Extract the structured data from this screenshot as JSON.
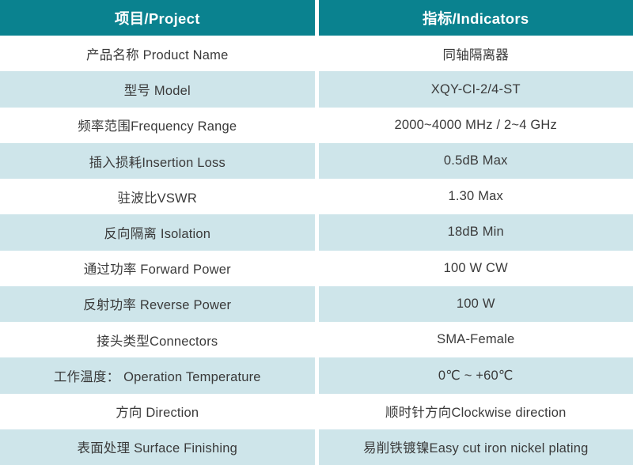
{
  "table": {
    "header": {
      "project_col": "项目/Project",
      "indicator_col": "指标/Indicators"
    },
    "rows": [
      {
        "project": "产品名称 Product Name",
        "indicator": "同轴隔离器"
      },
      {
        "project": "型号 Model",
        "indicator": "XQY-CI-2/4-ST"
      },
      {
        "project": "频率范围Frequency Range",
        "indicator": "2000~4000 MHz / 2~4 GHz"
      },
      {
        "project": "插入损耗Insertion Loss",
        "indicator": "0.5dB Max"
      },
      {
        "project": "驻波比VSWR",
        "indicator": "1.30 Max"
      },
      {
        "project": "反向隔离 Isolation",
        "indicator": "18dB Min"
      },
      {
        "project": "通过功率 Forward Power",
        "indicator": "100 W CW"
      },
      {
        "project": "反射功率 Reverse Power",
        "indicator": "100 W"
      },
      {
        "project": "接头类型Connectors",
        "indicator": "SMA-Female"
      },
      {
        "project": "工作温度： Operation Temperature",
        "indicator": "0℃ ~ +60℃"
      },
      {
        "project": "方向 Direction",
        "indicator": "顺时针方向Clockwise direction"
      },
      {
        "project": "表面处理 Surface Finishing",
        "indicator": "易削铁镀镍Easy cut iron nickel plating"
      }
    ]
  },
  "colors": {
    "header_bg": "#0a828f",
    "row_alt_bg": "#cee5ea",
    "row_bg": "#ffffff",
    "text": "#3a3a3a",
    "header_text": "#ffffff",
    "divider": "#ffffff"
  }
}
